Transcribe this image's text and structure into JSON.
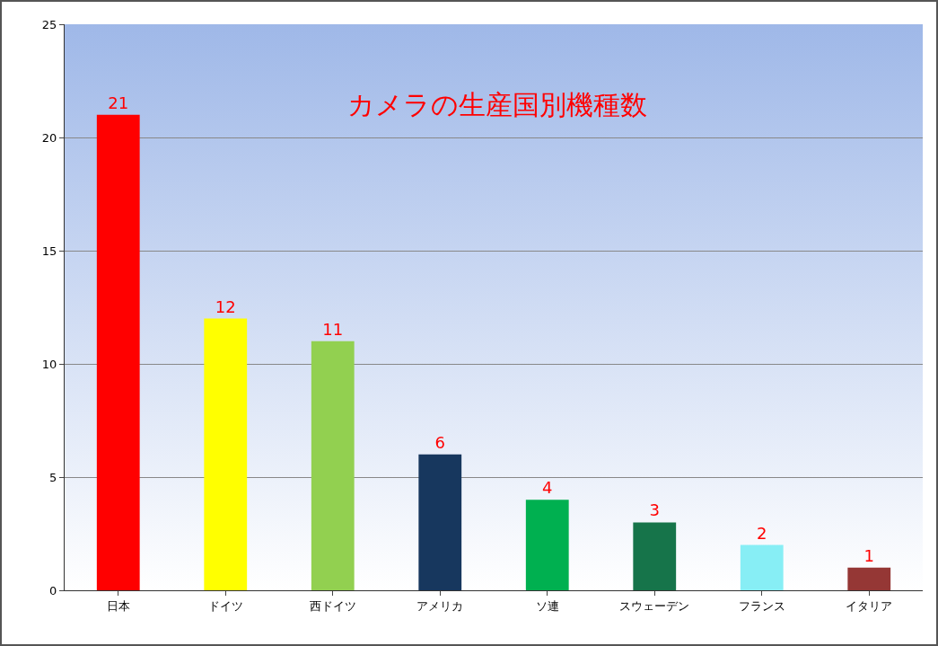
{
  "chart_data": {
    "type": "bar",
    "title": "カメラの生産国別機種数",
    "categories": [
      "日本",
      "ドイツ",
      "西ドイツ",
      "アメリカ",
      "ソ連",
      "スウェーデン",
      "フランス",
      "イタリア"
    ],
    "values": [
      21,
      12,
      11,
      6,
      4,
      3,
      2,
      1
    ],
    "colors": [
      "#ff0000",
      "#ffff00",
      "#92d050",
      "#17375e",
      "#00b050",
      "#16744a",
      "#87eef5",
      "#953735"
    ],
    "ylim": [
      0,
      25
    ],
    "yticks": [
      0,
      5,
      10,
      15,
      20,
      25
    ],
    "grid": "y",
    "data_labels": true
  }
}
